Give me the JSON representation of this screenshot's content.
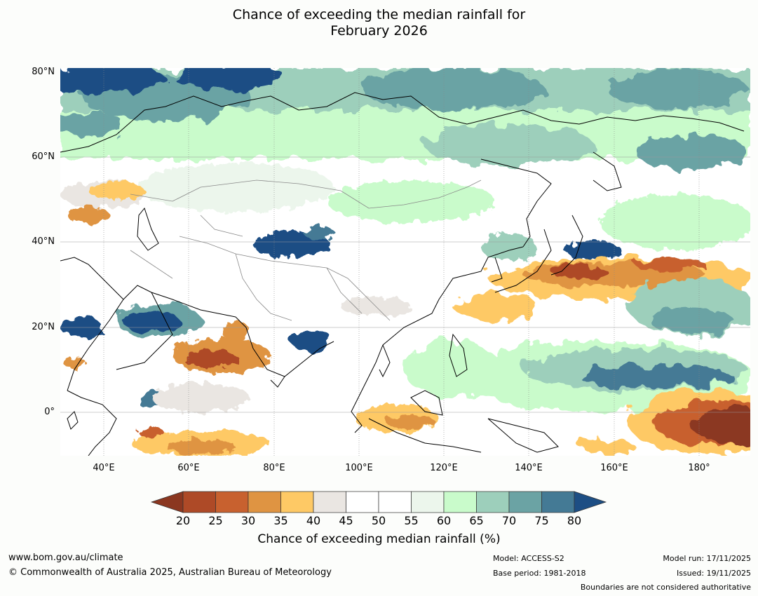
{
  "title_line1": "Chance of exceeding the median rainfall for",
  "title_line2": "February 2026",
  "lat_labels": [
    "80°N",
    "60°N",
    "40°N",
    "20°N",
    "0°"
  ],
  "lon_labels": [
    "40°E",
    "60°E",
    "80°E",
    "100°E",
    "120°E",
    "140°E",
    "160°E",
    "180°"
  ],
  "colorbar": {
    "ticks": [
      "20",
      "25",
      "30",
      "35",
      "40",
      "45",
      "50",
      "55",
      "60",
      "65",
      "70",
      "75",
      "80"
    ],
    "low_color": "#8b3720",
    "colors": [
      "#ae4a27",
      "#c8612f",
      "#df9442",
      "#fec965",
      "#eae6e2",
      "#ffffff",
      "#ffffff",
      "#ecf6ec",
      "#c9fbcb",
      "#9dcfbb",
      "#6ba3a4",
      "#447a95"
    ],
    "high_color": "#1d4e84",
    "label": "Chance of exceeding median rainfall (%)"
  },
  "footer": {
    "url": "www.bom.gov.au/climate",
    "copyright": "© Commonwealth of Australia 2025, Australian Bureau of Meteorology",
    "model": "Model: ACCESS-S2",
    "base_period": "Base period: 1981-2018",
    "model_run": "Model run: 17/11/2025",
    "issued": "Issued: 19/11/2025",
    "disclaimer": "Boundaries are not considered authoritative"
  }
}
